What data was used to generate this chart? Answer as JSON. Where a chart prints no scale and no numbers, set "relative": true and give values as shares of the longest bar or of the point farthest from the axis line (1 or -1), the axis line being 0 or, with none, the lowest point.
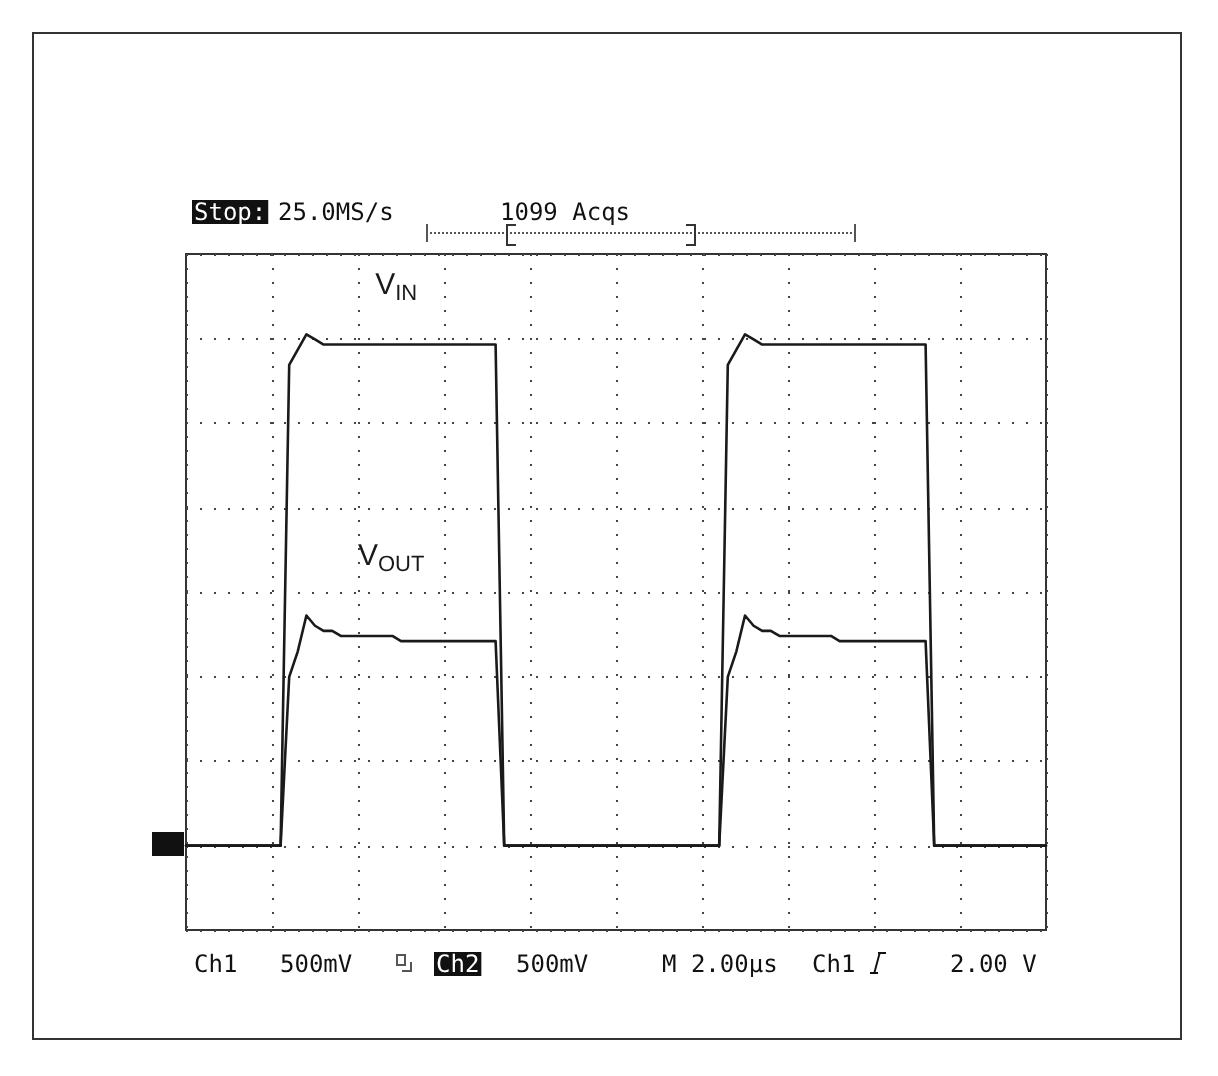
{
  "chart_data": {
    "type": "line",
    "relative": true,
    "grid": true,
    "legend": false,
    "marker": "none",
    "line_style": "solid",
    "categories": [
      null,
      null,
      null,
      null,
      null,
      null,
      null,
      null,
      null,
      null,
      null,
      null,
      null,
      null,
      null,
      null,
      null,
      null,
      null,
      null,
      null,
      null,
      null,
      null,
      null,
      null,
      null,
      null,
      null,
      null,
      null,
      null,
      null,
      null,
      null,
      null,
      null,
      null,
      null,
      null,
      null,
      null,
      null,
      null,
      null,
      null,
      null,
      null,
      null,
      null,
      null,
      null,
      null,
      null,
      null,
      null,
      null,
      null,
      null,
      null,
      null,
      null,
      null,
      null,
      null,
      null,
      null,
      null,
      null,
      null,
      null,
      null,
      null,
      null,
      null,
      null,
      null,
      null,
      null,
      null,
      null,
      null,
      null,
      null,
      null,
      null,
      null,
      null,
      null,
      null,
      null,
      null,
      null,
      null,
      null,
      null,
      null,
      null,
      null,
      null,
      null
    ],
    "series": [
      {
        "name": "V$_{IN}$",
        "color": "#1a1a1a",
        "values": [
          0,
          0,
          0,
          0,
          0,
          0,
          0,
          0,
          0,
          0,
          0,
          0,
          0.94,
          0.97,
          1,
          0.99,
          0.98,
          0.98,
          0.98,
          0.98,
          0.98,
          0.98,
          0.98,
          0.98,
          0.98,
          0.98,
          0.98,
          0.98,
          0.98,
          0.98,
          0.98,
          0.98,
          0.98,
          0.98,
          0.98,
          0.98,
          0.98,
          0,
          0,
          0,
          0,
          0,
          0,
          0,
          0,
          0,
          0,
          0,
          0,
          0,
          0,
          0,
          0,
          0,
          0,
          0,
          0,
          0,
          0,
          0,
          0,
          0,
          0,
          0.94,
          0.97,
          1,
          0.99,
          0.98,
          0.98,
          0.98,
          0.98,
          0.98,
          0.98,
          0.98,
          0.98,
          0.98,
          0.98,
          0.98,
          0.98,
          0.98,
          0.98,
          0.98,
          0.98,
          0.98,
          0.98,
          0.98,
          0.98,
          0,
          0,
          0,
          0,
          0,
          0,
          0,
          0,
          0,
          0,
          0,
          0,
          0,
          0
        ]
      },
      {
        "name": "V$_{OUT}$",
        "color": "#1a1a1a",
        "values": [
          0,
          0,
          0,
          0,
          0,
          0,
          0,
          0,
          0,
          0,
          0,
          0,
          0.33,
          0.38,
          0.45,
          0.43,
          0.42,
          0.42,
          0.41,
          0.41,
          0.41,
          0.41,
          0.41,
          0.41,
          0.41,
          0.4,
          0.4,
          0.4,
          0.4,
          0.4,
          0.4,
          0.4,
          0.4,
          0.4,
          0.4,
          0.4,
          0.4,
          0,
          0,
          0,
          0,
          0,
          0,
          0,
          0,
          0,
          0,
          0,
          0,
          0,
          0,
          0,
          0,
          0,
          0,
          0,
          0,
          0,
          0,
          0,
          0,
          0,
          0,
          0.33,
          0.38,
          0.45,
          0.43,
          0.42,
          0.42,
          0.41,
          0.41,
          0.41,
          0.41,
          0.41,
          0.41,
          0.41,
          0.4,
          0.4,
          0.4,
          0.4,
          0.4,
          0.4,
          0.4,
          0.4,
          0.4,
          0.4,
          0.4,
          0,
          0,
          0,
          0,
          0,
          0,
          0,
          0,
          0,
          0,
          0,
          0,
          0,
          0
        ]
      }
    ],
    "annotations": [
      "Stop:",
      "25.0MS/s",
      "1099 Acqs",
      "Ch1",
      "500mV",
      "Ch2",
      "500mV",
      "M 2.00µs",
      "Ch1",
      "2.00 V"
    ]
  }
}
